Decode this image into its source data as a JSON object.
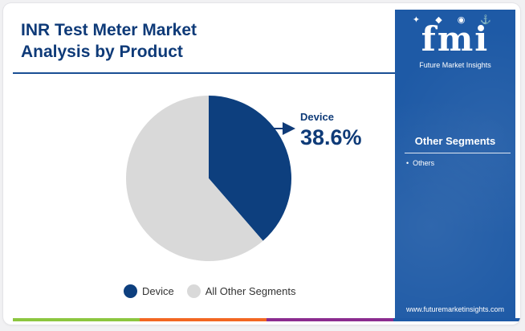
{
  "header": {
    "title_line1": "INR Test Meter Market",
    "title_line2": "Analysis by Product"
  },
  "chart_data": {
    "type": "pie",
    "slices": [
      {
        "label": "Device",
        "value": 38.6,
        "color": "#0d3f7e"
      },
      {
        "label": "All Other Segments",
        "value": 61.4,
        "color": "#d9d9d9"
      }
    ],
    "callout": {
      "label": "Device",
      "value_text": "38.6%"
    },
    "legend": [
      "Device",
      "All Other Segments"
    ]
  },
  "sidebar": {
    "logo_mark": "fmi",
    "logo_text": "Future Market Insights",
    "segments_heading": "Other Segments",
    "segments": [
      "Others"
    ],
    "website": "www.futuremarketinsights.com"
  },
  "colors": {
    "title": "#0e3a78",
    "sidebar_bg": "#1e5aa6",
    "stripe": [
      "#8cc63f",
      "#f26722",
      "#8b2c8f",
      "#1e5aa6"
    ]
  }
}
